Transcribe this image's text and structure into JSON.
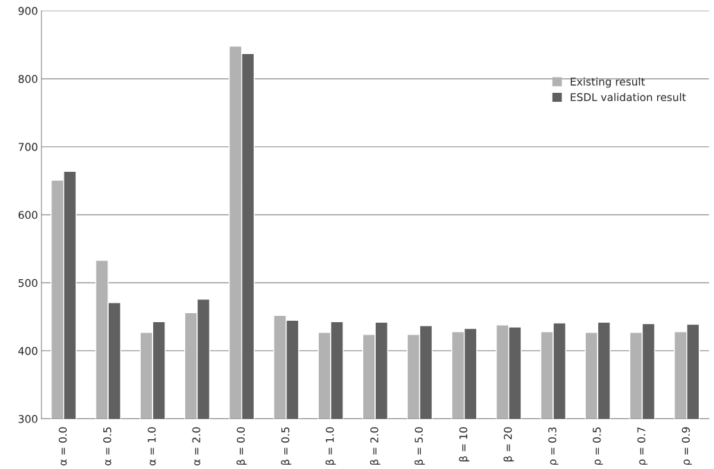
{
  "chart_data": {
    "type": "bar",
    "categories": [
      "α = 0.0",
      "α = 0.5",
      "α = 1.0",
      "α = 2.0",
      "β = 0.0",
      "β = 0.5",
      "β = 1.0",
      "β = 2.0",
      "β = 5.0",
      "β = 10",
      "β = 20",
      "ρ = 0.3",
      "ρ = 0.5",
      "ρ = 0.7",
      "ρ = 0.9"
    ],
    "series": [
      {
        "name": "Existing result",
        "color": "#b2b2b2",
        "values": [
          651,
          533,
          427,
          456,
          848,
          452,
          427,
          424,
          424,
          428,
          438,
          428,
          427,
          427,
          428
        ]
      },
      {
        "name": "ESDL validation result",
        "color": "#606060",
        "values": [
          664,
          471,
          443,
          476,
          837,
          445,
          443,
          442,
          437,
          433,
          435,
          441,
          442,
          440,
          439
        ]
      }
    ],
    "ylim": [
      300,
      900
    ],
    "yticks": [
      300,
      400,
      500,
      600,
      700,
      800,
      900
    ],
    "grid": "y",
    "legend": "top right"
  }
}
